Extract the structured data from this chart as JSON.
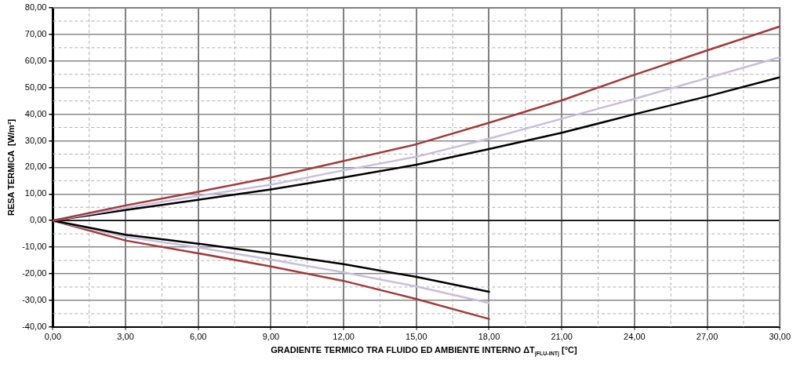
{
  "chart_data": {
    "type": "line",
    "xlabel": "GRADIENTE TERMICO TRA FLUIDO ED AMBIENTE INTERNO  ΔT$_{|FLU-INT|}$  [°C]",
    "ylabel": "RESA TERMICA  [W/m²]",
    "x": [
      0,
      3,
      6,
      9,
      12,
      15,
      18,
      21,
      24,
      27,
      30
    ],
    "series": [
      {
        "color": "#a33a3a",
        "values": [
          0,
          5.7,
          10.8,
          16.2,
          22.4,
          28.7,
          36.8,
          45.2,
          54.8,
          64,
          73
        ]
      },
      {
        "color": "#c9bedc",
        "values": [
          0,
          4.8,
          9.3,
          13.5,
          18.9,
          24,
          30.8,
          38.3,
          45.8,
          53.6,
          61.4
        ]
      },
      {
        "color": "#000000",
        "values": [
          0,
          4,
          7.8,
          11.7,
          16.2,
          21,
          26.9,
          33,
          40,
          46.7,
          53.9
        ]
      },
      {
        "color": "#000000",
        "values": [
          0,
          -5.3,
          -8.7,
          -12.4,
          -16.4,
          -21.2,
          -26.8,
          null,
          null,
          null,
          null
        ]
      },
      {
        "color": "#c9bedc",
        "values": [
          0,
          -6.1,
          -10.1,
          -14.7,
          -19.5,
          -24.8,
          -31,
          null,
          null,
          null,
          null
        ]
      },
      {
        "color": "#a33a3a",
        "values": [
          0,
          -7.5,
          -12.3,
          -17.3,
          -22.7,
          -29.5,
          -37,
          null,
          null,
          null,
          null
        ]
      }
    ],
    "xlim": [
      0,
      30
    ],
    "xticks": [
      {
        "value": 0,
        "label": "0,00"
      },
      {
        "value": 3,
        "label": "3,00"
      },
      {
        "value": 6,
        "label": "6,00"
      },
      {
        "value": 9,
        "label": "9,00"
      },
      {
        "value": 12,
        "label": "12,00"
      },
      {
        "value": 15,
        "label": "15,00"
      },
      {
        "value": 18,
        "label": "18,00"
      },
      {
        "value": 21,
        "label": "21,00"
      },
      {
        "value": 24,
        "label": "24,00"
      },
      {
        "value": 27,
        "label": "27,00"
      },
      {
        "value": 30,
        "label": "30,00"
      }
    ],
    "ylim": [
      -40,
      80
    ],
    "yticks": [
      {
        "value": -40,
        "label": "-40,00"
      },
      {
        "value": -30,
        "label": "-30,00"
      },
      {
        "value": -20,
        "label": "-20,00"
      },
      {
        "value": -10,
        "label": "-10,00"
      },
      {
        "value": 0,
        "label": "0,00"
      },
      {
        "value": 10,
        "label": "10,00"
      },
      {
        "value": 20,
        "label": "20,00"
      },
      {
        "value": 30,
        "label": "30,00"
      },
      {
        "value": 40,
        "label": "40,00"
      },
      {
        "value": 50,
        "label": "50,00"
      },
      {
        "value": 60,
        "label": "60,00"
      },
      {
        "value": 70,
        "label": "70,00"
      },
      {
        "value": 80,
        "label": "80,00"
      }
    ],
    "ref_lines": [
      {
        "axis": "y",
        "value": 0,
        "color": "#000000"
      }
    ],
    "grid": true,
    "legend": false,
    "marker": "none",
    "line_style": "solid"
  }
}
